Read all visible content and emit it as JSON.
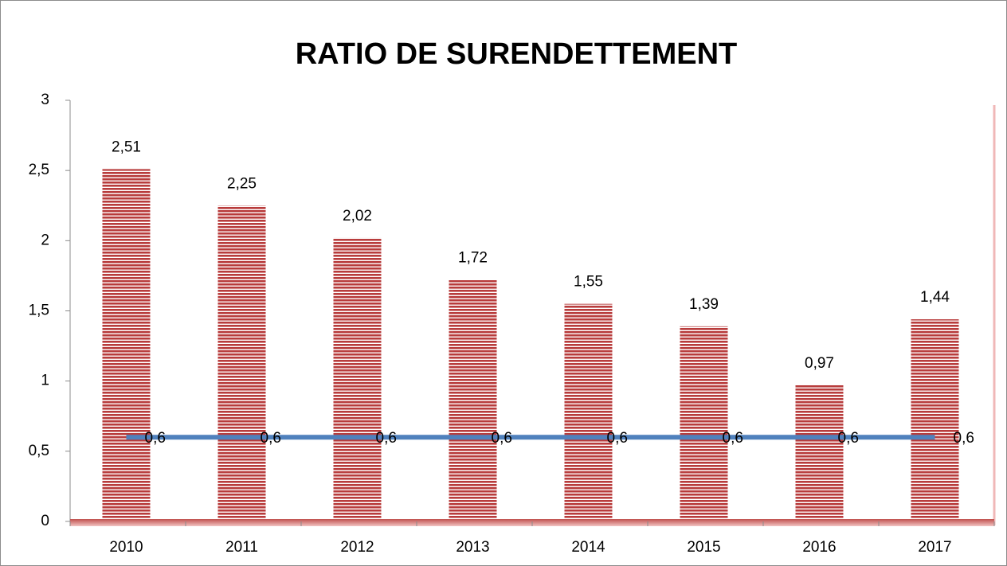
{
  "chart_data": {
    "type": "bar",
    "title": "RATIO DE SURENDETTEMENT",
    "categories": [
      "2010",
      "2011",
      "2012",
      "2013",
      "2014",
      "2015",
      "2016",
      "2017"
    ],
    "series": [
      {
        "type": "bar",
        "color": "#b83c3c",
        "values": [
          2.51,
          2.25,
          2.02,
          1.72,
          1.55,
          1.39,
          0.97,
          1.44
        ],
        "value_labels": [
          "2,51",
          "2,25",
          "2,02",
          "1,72",
          "1,55",
          "1,39",
          "0,97",
          "1,44"
        ]
      },
      {
        "type": "line",
        "color": "#4f81bd",
        "values": [
          0.6,
          0.6,
          0.6,
          0.6,
          0.6,
          0.6,
          0.6,
          0.6
        ],
        "value_labels": [
          "0,6",
          "0,6",
          "0,6",
          "0,6",
          "0,6",
          "0,6",
          "0,6",
          "0,6"
        ]
      }
    ],
    "ylim": [
      0,
      3
    ],
    "yticks": [
      0,
      {
        "value": 0.5,
        "label": "0,5"
      },
      1,
      {
        "value": 1.5,
        "label": "1,5"
      },
      2,
      {
        "value": 2.5,
        "label": "2,5"
      },
      3
    ],
    "grid": false
  }
}
